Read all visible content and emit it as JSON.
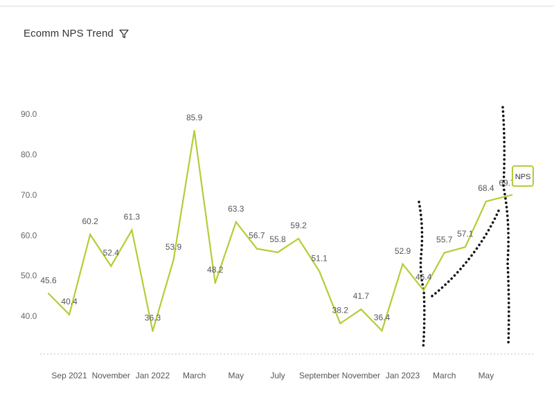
{
  "header": {
    "title": "Ecomm NPS Trend",
    "filter_icon": "filter-icon"
  },
  "chart_data": {
    "type": "line",
    "title": "Ecomm NPS Trend",
    "xlabel": "",
    "ylabel": "",
    "ylim": [
      33.0,
      96.0
    ],
    "y_ticks": [
      "40.0",
      "50.0",
      "60.0",
      "70.0",
      "80.0",
      "90.0"
    ],
    "x_tick_labels": [
      "Sep 2021",
      "November",
      "Jan 2022",
      "March",
      "May",
      "July",
      "September",
      "November",
      "Jan 2023",
      "March",
      "May"
    ],
    "x_tick_positions": [
      1,
      3,
      5,
      7,
      9,
      11,
      13,
      15,
      17,
      19,
      21
    ],
    "legend": {
      "label": "NPS",
      "placement": "right, at end of line"
    },
    "grid": false,
    "series": [
      {
        "name": "NPS",
        "color": "#b5cc34",
        "labels": [
          "45.6",
          "40.4",
          "60.2",
          "52.4",
          "61.3",
          "36.3",
          "53.9",
          "85.9",
          "48.2",
          "63.3",
          "56.7",
          "55.8",
          "59.2",
          "51.1",
          "38.2",
          "41.7",
          "36.4",
          "52.9",
          "46.4",
          "55.7",
          "57.1",
          "68.4",
          "69.7"
        ],
        "values": [
          45.6,
          40.4,
          60.2,
          52.4,
          61.3,
          36.3,
          53.9,
          85.9,
          48.2,
          63.3,
          56.7,
          55.8,
          59.2,
          51.1,
          38.2,
          41.7,
          36.4,
          52.9,
          46.4,
          55.7,
          57.1,
          68.4,
          69.7
        ]
      }
    ]
  }
}
